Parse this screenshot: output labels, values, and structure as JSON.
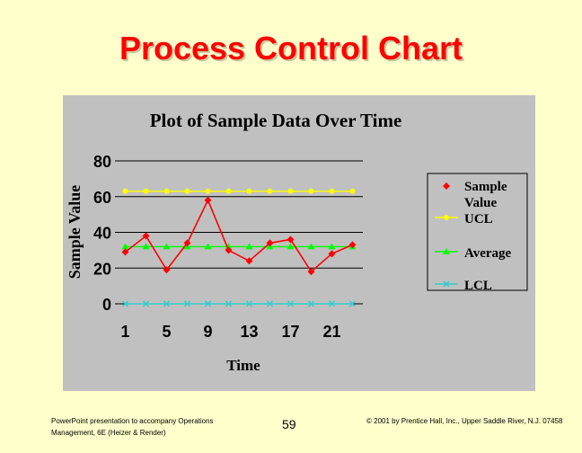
{
  "slide": {
    "title": "Process Control Chart",
    "footer_left": "PowerPoint presentation to accompany Operations Management, 6E (Heizer & Render)",
    "page_number": "59",
    "footer_right": "© 2001 by Prentice Hall, Inc., Upper Saddle River, N.J. 07458"
  },
  "colors": {
    "background": "#ffffcc",
    "title": "#ff0000",
    "panel": "#c0c0c0",
    "sample": "#ff0000",
    "ucl": "#ffff00",
    "average": "#00ff00",
    "lcl": "#33cccc"
  },
  "chart_data": {
    "type": "line",
    "title": "Plot of Sample Data Over Time",
    "xlabel": "Time",
    "ylabel": "Sample Value",
    "ylim": [
      0,
      80
    ],
    "yticks": [
      0,
      20,
      40,
      60,
      80
    ],
    "x": [
      1,
      3,
      5,
      7,
      9,
      11,
      13,
      15,
      17,
      19,
      21,
      23
    ],
    "xticks": [
      1,
      5,
      9,
      13,
      17,
      21
    ],
    "grid": true,
    "legend_position": "right",
    "series": [
      {
        "name": "Sample Value",
        "marker": "diamond",
        "values": [
          29,
          38,
          19,
          34,
          58,
          30,
          24,
          34,
          36,
          18,
          28,
          33
        ]
      },
      {
        "name": "UCL",
        "marker": "circle",
        "values": [
          63,
          63,
          63,
          63,
          63,
          63,
          63,
          63,
          63,
          63,
          63,
          63
        ]
      },
      {
        "name": "Average",
        "marker": "triangle",
        "values": [
          32,
          32,
          32,
          32,
          32,
          32,
          32,
          32,
          32,
          32,
          32,
          32
        ]
      },
      {
        "name": "LCL",
        "marker": "x",
        "values": [
          0,
          0,
          0,
          0,
          0,
          0,
          0,
          0,
          0,
          0,
          0,
          0
        ]
      }
    ]
  }
}
